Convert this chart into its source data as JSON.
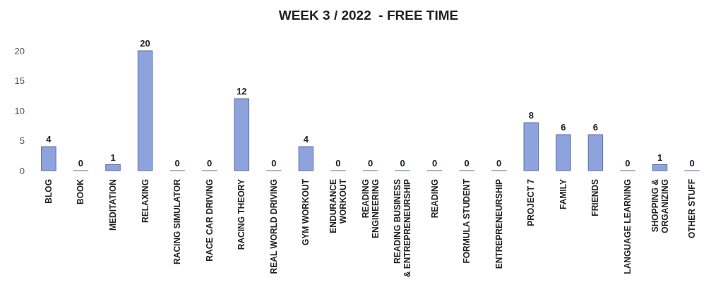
{
  "chart_data": {
    "type": "bar",
    "title": "WEEK 3 / 2022  - FREE TIME",
    "categories": [
      "BLOG",
      "BOOK",
      "MEDITATION",
      "RELAXING",
      "RACING SIMULATOR",
      "RACE CAR DRIVING",
      "RACING THEORY",
      "REAL WORLD DRIVING",
      "GYM WORKOUT",
      "ENDURANCE WORKOUT",
      "READING ENGINEERING",
      "READING BUSINESS & ENTREPRENEURSHIP",
      "READING",
      "FORMULA STUDENT",
      "ENTREPRENEURSHIP",
      "PROJECT 7",
      "FAMILY",
      "FRIENDS",
      "LANGUAGE LEARNING",
      "SHOPPING & ORGANIZING",
      "OTHER STUFF"
    ],
    "values": [
      4,
      0,
      1,
      20,
      0,
      0,
      12,
      0,
      4,
      0,
      0,
      0,
      0,
      0,
      0,
      8,
      6,
      6,
      0,
      1,
      0
    ],
    "color": "#8ea2dc",
    "ylim": [
      0,
      20
    ],
    "yticks": [
      0,
      5,
      10,
      15,
      20
    ],
    "data_labels": true
  }
}
